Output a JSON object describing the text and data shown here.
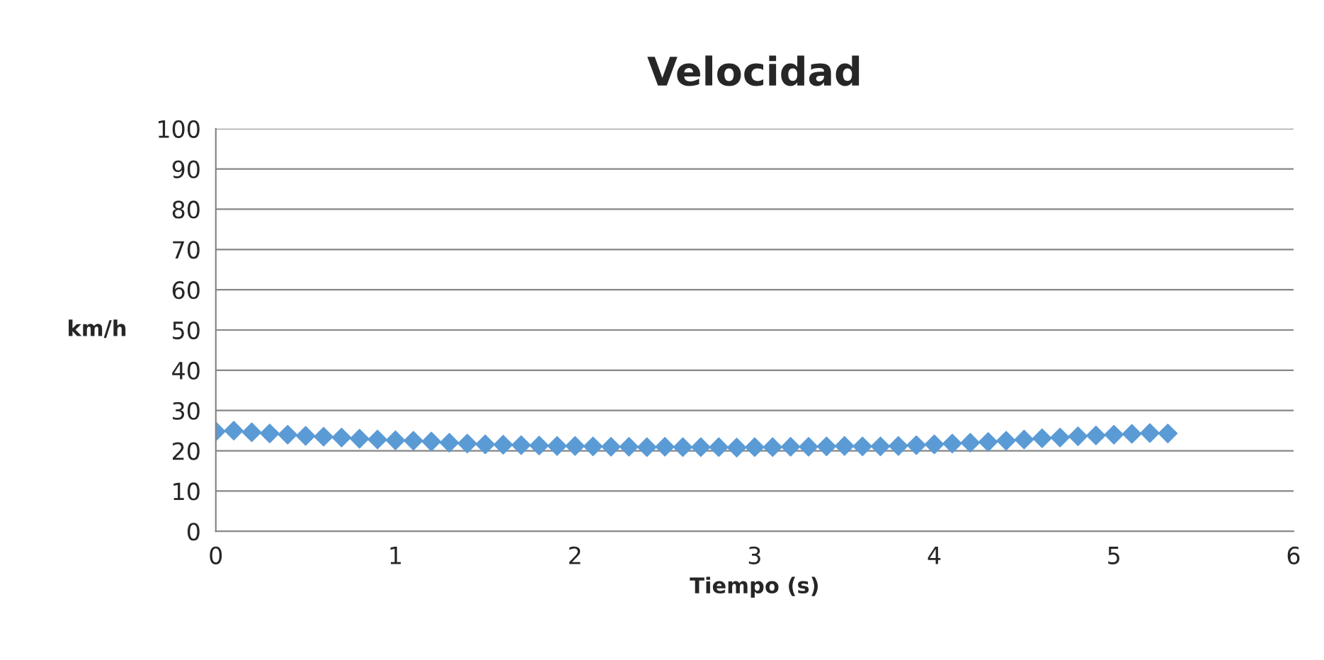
{
  "chart_data": {
    "type": "scatter",
    "title": "Velocidad",
    "xlabel": "Tiempo (s)",
    "ylabel": "km/h",
    "x": [
      0,
      0.1,
      0.2,
      0.3,
      0.4,
      0.5,
      0.6,
      0.7,
      0.8,
      0.9,
      1.0,
      1.1,
      1.2,
      1.3,
      1.4,
      1.5,
      1.6,
      1.7,
      1.8,
      1.9,
      2.0,
      2.1,
      2.2,
      2.3,
      2.4,
      2.5,
      2.6,
      2.7,
      2.8,
      2.9,
      3.0,
      3.1,
      3.2,
      3.3,
      3.4,
      3.5,
      3.6,
      3.7,
      3.8,
      3.9,
      4.0,
      4.1,
      4.2,
      4.3,
      4.4,
      4.5,
      4.6,
      4.7,
      4.8,
      4.9,
      5.0,
      5.1,
      5.2,
      5.3
    ],
    "series": [
      {
        "color": "#5b9bd5",
        "values": [
          24.8,
          25,
          24.6,
          24.3,
          24,
          23.7,
          23.5,
          23.3,
          23,
          22.8,
          22.6,
          22.5,
          22.3,
          22,
          21.8,
          21.6,
          21.5,
          21.4,
          21.3,
          21.2,
          21.2,
          21.1,
          21,
          21,
          20.9,
          21,
          20.9,
          20.9,
          20.9,
          20.8,
          20.9,
          20.9,
          21,
          21,
          21.1,
          21.2,
          21.1,
          21.1,
          21.2,
          21.4,
          21.6,
          21.8,
          22,
          22.2,
          22.5,
          22.8,
          23.1,
          23.3,
          23.6,
          23.8,
          24,
          24.2,
          24.4,
          24.3
        ]
      }
    ],
    "xlim": [
      0,
      6
    ],
    "xticks": [
      0,
      1,
      2,
      3,
      4,
      5,
      6
    ],
    "ylim": [
      0,
      100
    ],
    "yticks": [
      0,
      10,
      20,
      30,
      40,
      50,
      60,
      70,
      80,
      90,
      100
    ],
    "grid": "y",
    "marker": "diamond",
    "legend": false
  }
}
